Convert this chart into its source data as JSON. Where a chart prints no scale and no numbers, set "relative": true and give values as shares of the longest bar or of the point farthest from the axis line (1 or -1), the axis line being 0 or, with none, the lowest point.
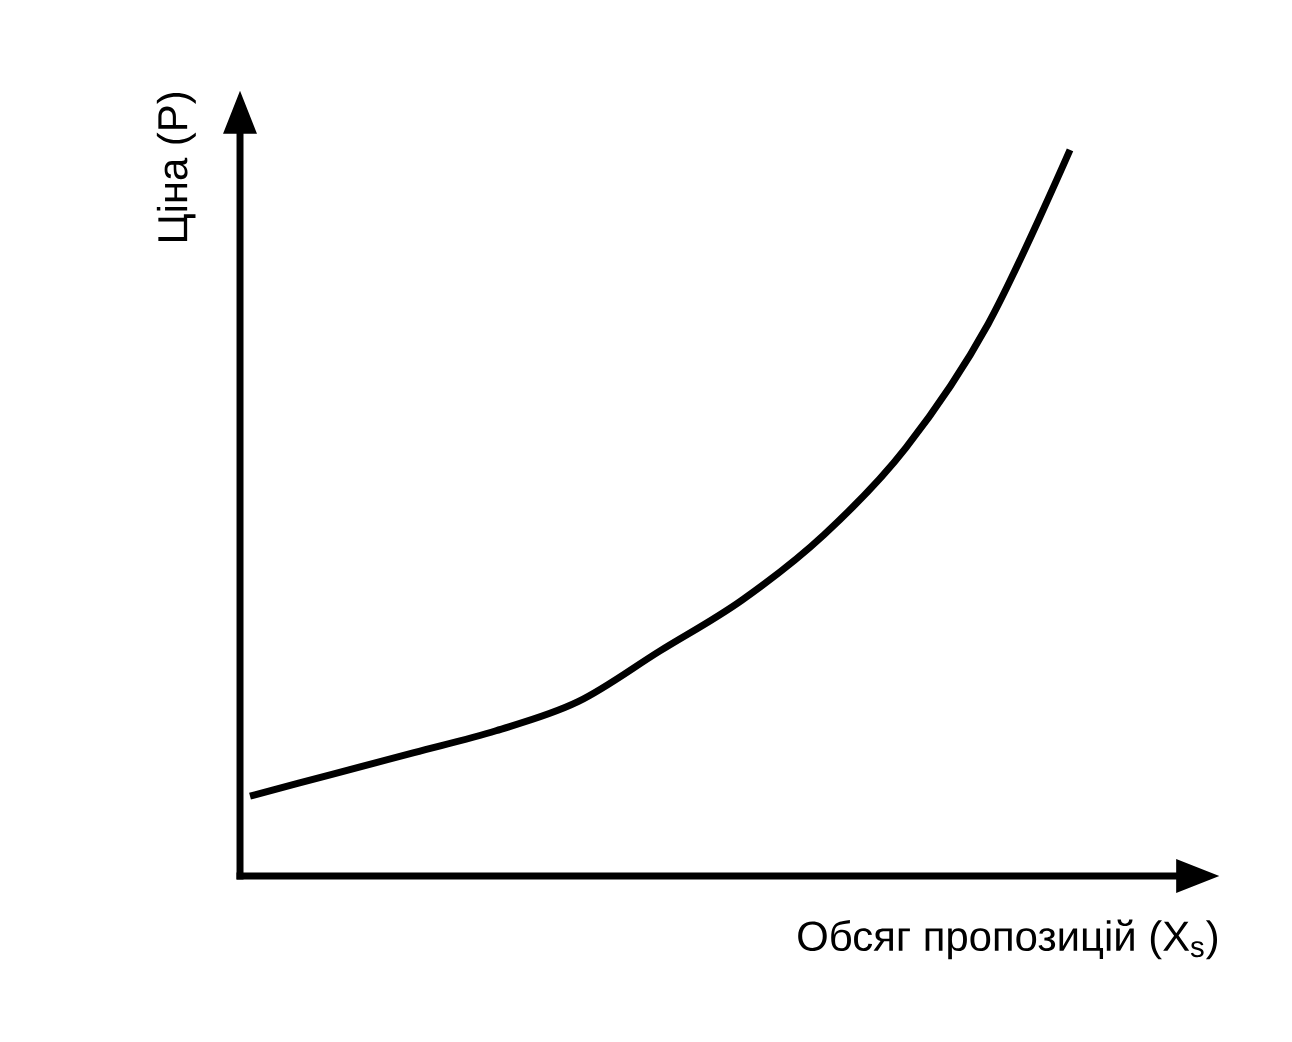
{
  "chart_data": {
    "type": "line",
    "relative": true,
    "xlabel": "Обсяг пропозицій (X$_{s}$)",
    "ylabel": "Ціна (P)",
    "color": "#000000",
    "categories": [
      null,
      null,
      null,
      null,
      null,
      null,
      null,
      null,
      null,
      null,
      null
    ],
    "values": [
      0.11,
      0.14,
      0.17,
      0.2,
      0.24,
      0.31,
      0.38,
      0.47,
      0.59,
      0.76,
      1.0
    ]
  }
}
